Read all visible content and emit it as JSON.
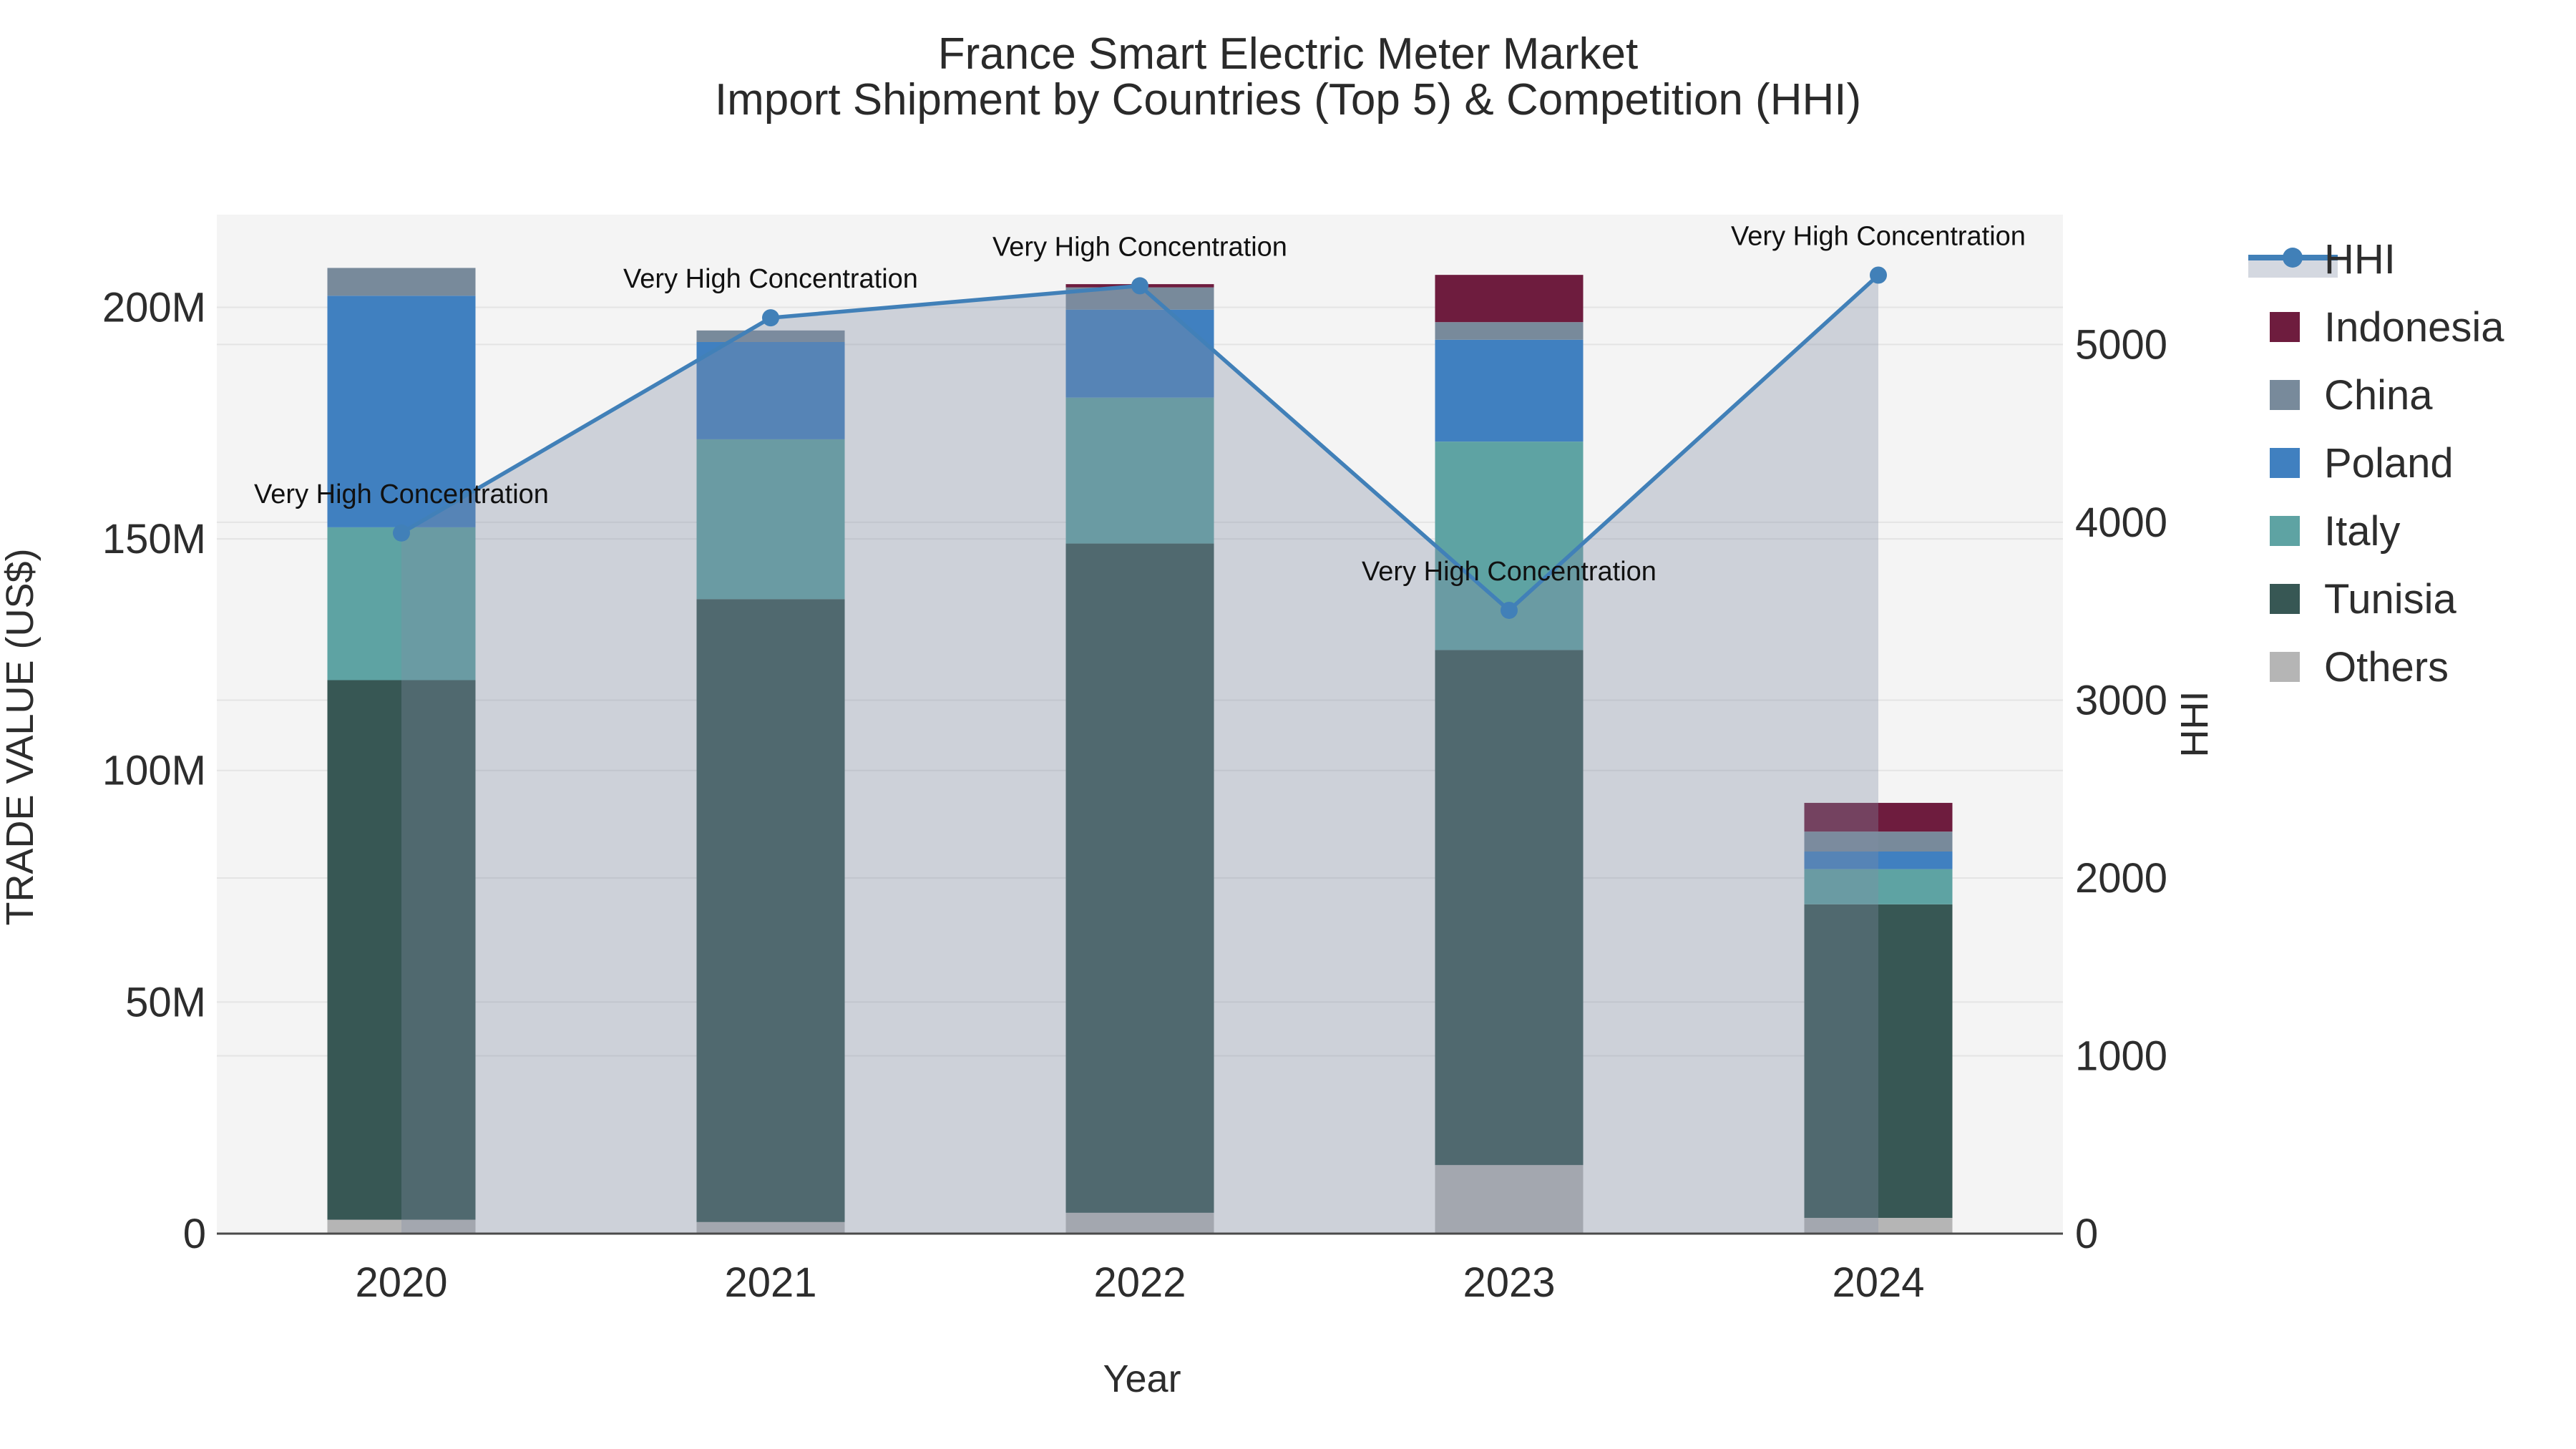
{
  "title": {
    "line1": "France Smart Electric Meter Market",
    "line2": "Import Shipment by Countries (Top 5) & Competition (HHI)"
  },
  "chart_data": {
    "type": "bar+line",
    "categories": [
      "2020",
      "2021",
      "2022",
      "2023",
      "2024"
    ],
    "xlabel": "Year",
    "left_axis": {
      "title": "TRADE VALUE (US$)",
      "range": [
        0,
        220
      ],
      "units": "millions US$",
      "ticks": [
        {
          "v": 0,
          "label": "0"
        },
        {
          "v": 50,
          "label": "50M"
        },
        {
          "v": 100,
          "label": "100M"
        },
        {
          "v": 150,
          "label": "150M"
        },
        {
          "v": 200,
          "label": "200M"
        }
      ]
    },
    "right_axis": {
      "title": "HHI",
      "range": [
        0,
        5730
      ],
      "ticks": [
        {
          "v": 0,
          "label": "0"
        },
        {
          "v": 1000,
          "label": "1000"
        },
        {
          "v": 2000,
          "label": "2000"
        },
        {
          "v": 3000,
          "label": "3000"
        },
        {
          "v": 4000,
          "label": "4000"
        },
        {
          "v": 5000,
          "label": "5000"
        }
      ]
    },
    "grid": true,
    "plot_background": "#f4f4f4",
    "gridline_color": "#e4e4e4",
    "axisline_color": "#4a4a4a",
    "stack_order_bottom_to_top": [
      "Others",
      "Tunisia",
      "Italy",
      "Poland",
      "China",
      "Indonesia"
    ],
    "series": [
      {
        "name": "Others",
        "color": "#b5b5b5",
        "values": [
          3.0,
          2.5,
          4.5,
          14.8,
          3.4
        ]
      },
      {
        "name": "Tunisia",
        "color": "#375754",
        "values": [
          116.5,
          134.5,
          144.5,
          111.2,
          67.7
        ]
      },
      {
        "name": "Italy",
        "color": "#5ea3a3",
        "values": [
          33.0,
          34.5,
          31.5,
          45.0,
          7.6
        ]
      },
      {
        "name": "Poland",
        "color": "#4080c0",
        "values": [
          50.0,
          21.0,
          19.0,
          22.0,
          3.8
        ]
      },
      {
        "name": "China",
        "color": "#788a9b",
        "values": [
          6.0,
          2.5,
          4.8,
          3.8,
          4.3
        ]
      },
      {
        "name": "Indonesia",
        "color": "#6e1c3e",
        "values": [
          0,
          0,
          0.7,
          10.2,
          6.2
        ]
      }
    ],
    "hhi_line": {
      "name": "HHI",
      "color": "#4180b8",
      "fill_color": "rgba(128,140,163,0.34)",
      "values": [
        3940,
        5150,
        5330,
        3505,
        5390
      ]
    },
    "annotations": [
      {
        "year": "2020",
        "text": "Very High Concentration"
      },
      {
        "year": "2021",
        "text": "Very High Concentration"
      },
      {
        "year": "2022",
        "text": "Very High Concentration"
      },
      {
        "year": "2023",
        "text": "Very High Concentration"
      },
      {
        "year": "2024",
        "text": "Very High Concentration"
      }
    ],
    "legend_order": [
      "HHI",
      "Indonesia",
      "China",
      "Poland",
      "Italy",
      "Tunisia",
      "Others"
    ],
    "legend_position": "right"
  }
}
